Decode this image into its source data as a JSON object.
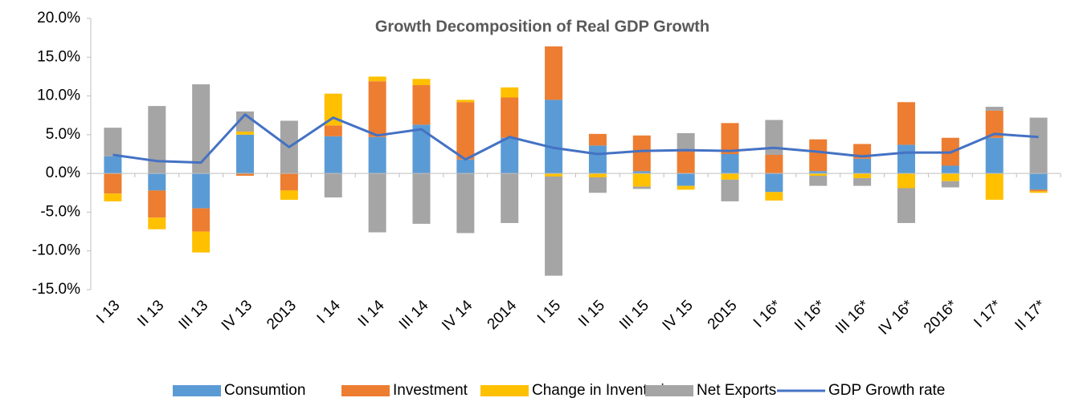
{
  "chart_data": {
    "type": "stacked-bar-line",
    "title": "Growth Decomposition of Real GDP Growth",
    "categories": [
      "I 13",
      "II 13",
      "III 13",
      "IV 13",
      "2013",
      "I 14",
      "II 14",
      "III 14",
      "IV 14",
      "2014",
      "I 15",
      "II 15",
      "III 15",
      "IV 15",
      "2015",
      "I 16*",
      "II 16*",
      "III 16*",
      "IV 16*",
      "2016*",
      "I 17*",
      "II 17*"
    ],
    "series": [
      {
        "name": "Consumtion",
        "color": "#5b9bd5",
        "kind": "bar",
        "values": [
          2.2,
          -2.2,
          -4.5,
          5.0,
          0,
          4.8,
          4.7,
          6.3,
          1.8,
          4.6,
          9.5,
          3.6,
          0.3,
          -1.6,
          2.5,
          -2.4,
          0.3,
          1.9,
          3.7,
          1.0,
          4.6,
          -2.1
        ]
      },
      {
        "name": "Investment",
        "color": "#ed7d31",
        "kind": "bar",
        "values": [
          -2.6,
          -3.5,
          -3.0,
          -0.3,
          -2.2,
          1.4,
          7.2,
          5.1,
          7.4,
          5.2,
          6.9,
          1.5,
          4.6,
          3.0,
          4.0,
          2.4,
          4.1,
          1.9,
          5.5,
          3.6,
          3.5,
          -0.2
        ]
      },
      {
        "name": "Change in Inventories",
        "color": "#ffc000",
        "kind": "bar",
        "values": [
          -1.0,
          -1.5,
          -2.7,
          0.4,
          -1.2,
          4.1,
          0.6,
          0.8,
          0.3,
          1.3,
          -0.4,
          -0.5,
          -1.7,
          -0.5,
          -0.8,
          -1.1,
          -0.3,
          -0.6,
          -1.9,
          -1.0,
          -3.4,
          -0.2
        ]
      },
      {
        "name": "Net Exports",
        "color": "#a5a5a5",
        "kind": "bar",
        "values": [
          3.7,
          8.7,
          11.5,
          2.6,
          6.8,
          -3.1,
          -7.6,
          -6.5,
          -7.7,
          -6.4,
          -12.8,
          -2.0,
          -0.3,
          2.2,
          -2.8,
          4.5,
          -1.3,
          -1.0,
          -4.5,
          -0.8,
          0.5,
          7.2
        ]
      },
      {
        "name": "GDP Growth rate",
        "color": "#4472c4",
        "kind": "line",
        "values": [
          2.4,
          1.6,
          1.4,
          7.6,
          3.4,
          7.2,
          4.9,
          5.7,
          1.8,
          4.7,
          3.3,
          2.5,
          2.9,
          3.0,
          2.9,
          3.3,
          2.8,
          2.2,
          2.7,
          2.7,
          5.1,
          4.7
        ]
      }
    ],
    "ylim": [
      -15,
      20
    ],
    "yticks": [
      {
        "value": -15,
        "label": "-15.0%"
      },
      {
        "value": -10,
        "label": "-10.0%"
      },
      {
        "value": -5,
        "label": "-5.0%"
      },
      {
        "value": 0,
        "label": "0.0%"
      },
      {
        "value": 5,
        "label": "5.0%"
      },
      {
        "value": 10,
        "label": "10.0%"
      },
      {
        "value": 15,
        "label": "15.0%"
      },
      {
        "value": 20,
        "label": "20.0%"
      }
    ],
    "grid": false,
    "legend": "bottom"
  }
}
